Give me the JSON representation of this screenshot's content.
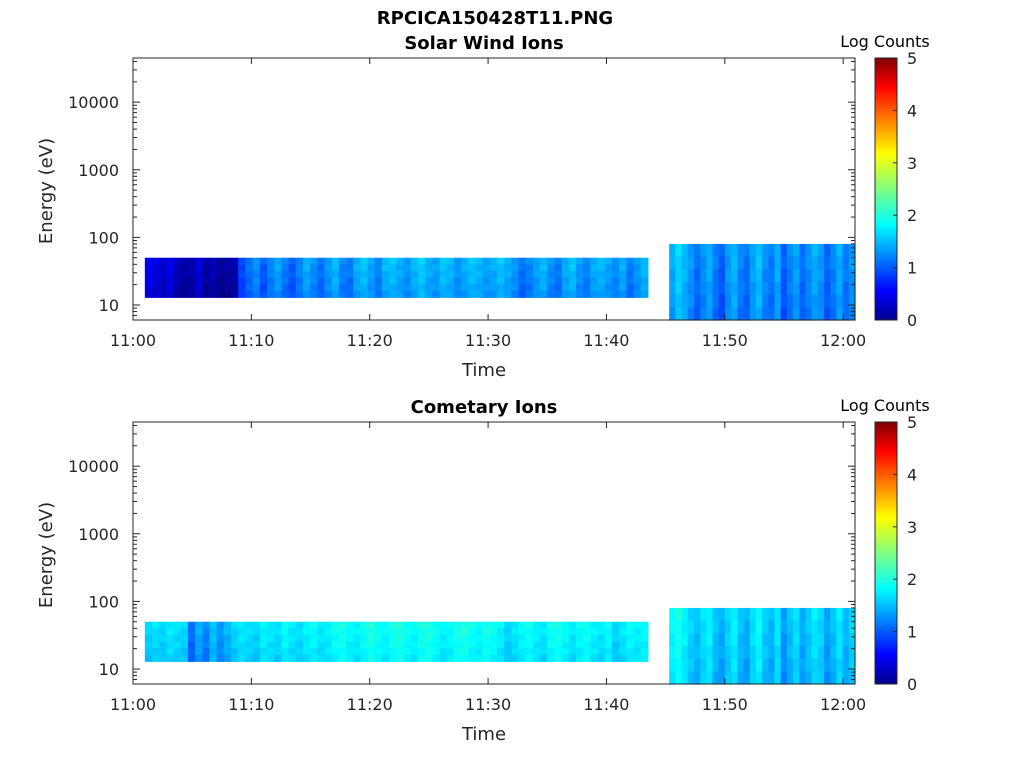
{
  "figure_title": "RPCICA150428T11.PNG",
  "chart_data": [
    {
      "type": "heatmap",
      "title": "Solar Wind Ions",
      "xlabel": "Time",
      "ylabel": "Energy (eV)",
      "yscale": "log",
      "x_ticks": [
        "11:00",
        "11:10",
        "11:20",
        "11:30",
        "11:40",
        "11:50",
        "12:00"
      ],
      "y_ticks": [
        "10",
        "100",
        "1000",
        "10000"
      ],
      "xlim": [
        "11:00",
        "12:01"
      ],
      "ylim": [
        6,
        45000
      ],
      "colorbar": {
        "label": "Log Counts",
        "range": [
          0,
          5
        ],
        "ticks": [
          "0",
          "1",
          "2",
          "3",
          "4",
          "5"
        ],
        "colormap": "jet"
      },
      "segments": [
        {
          "t_start": "11:01",
          "t_end": "11:43.5",
          "energy_range_eV": [
            13,
            50
          ],
          "log_counts": [
            0.6,
            0.5,
            0.4,
            0.55,
            0.3,
            0.2,
            0.25,
            0.5,
            0.2,
            0.3,
            0.15,
            0.2,
            0.25,
            1.0,
            1.2,
            1.35,
            1.1,
            1.3,
            1.45,
            1.25,
            1.1,
            1.3,
            1.5,
            1.35,
            1.2,
            1.4,
            1.55,
            1.3,
            1.25,
            1.5,
            1.6,
            1.45,
            1.3,
            1.55,
            1.6,
            1.5,
            1.4,
            1.55,
            1.65,
            1.5,
            1.45,
            1.6,
            1.55,
            1.4,
            1.5,
            1.6,
            1.55,
            1.45,
            1.5,
            1.6,
            1.5,
            1.4,
            1.2,
            1.3,
            1.45,
            1.55,
            1.35,
            1.25,
            1.5,
            1.6,
            1.4,
            1.3,
            1.5,
            1.55,
            1.45,
            1.35,
            1.5,
            1.25,
            1.4,
            1.55
          ]
        },
        {
          "t_start": "11:45.3",
          "t_end": "12:01",
          "energy_range_eV": [
            6,
            80
          ],
          "log_counts": [
            1.5,
            1.7,
            1.55,
            1.4,
            1.2,
            1.35,
            1.5,
            1.25,
            1.1,
            1.4,
            1.55,
            1.3,
            1.2,
            1.45,
            1.6,
            1.35,
            1.25,
            1.5,
            1.1,
            1.3,
            1.45,
            1.2,
            1.35,
            1.5,
            1.4,
            1.15,
            1.3,
            1.5,
            1.25,
            1.4
          ]
        }
      ]
    },
    {
      "type": "heatmap",
      "title": "Cometary Ions",
      "xlabel": "Time",
      "ylabel": "Energy (eV)",
      "yscale": "log",
      "x_ticks": [
        "11:00",
        "11:10",
        "11:20",
        "11:30",
        "11:40",
        "11:50",
        "12:00"
      ],
      "y_ticks": [
        "10",
        "100",
        "1000",
        "10000"
      ],
      "xlim": [
        "11:00",
        "12:01"
      ],
      "ylim": [
        6,
        45000
      ],
      "colorbar": {
        "label": "Log Counts",
        "range": [
          0,
          5
        ],
        "ticks": [
          "0",
          "1",
          "2",
          "3",
          "4",
          "5"
        ],
        "colormap": "jet"
      },
      "segments": [
        {
          "t_start": "11:01",
          "t_end": "11:43.5",
          "energy_range_eV": [
            13,
            50
          ],
          "log_counts": [
            1.7,
            1.75,
            1.7,
            1.8,
            1.75,
            1.7,
            1.2,
            1.5,
            1.3,
            1.6,
            1.4,
            1.55,
            1.7,
            1.8,
            1.75,
            1.7,
            1.85,
            1.8,
            1.75,
            1.9,
            1.8,
            1.75,
            1.85,
            1.9,
            1.8,
            1.85,
            1.95,
            2.0,
            1.9,
            1.85,
            1.95,
            2.05,
            1.95,
            1.9,
            2.0,
            2.05,
            1.95,
            1.9,
            2.0,
            2.05,
            1.95,
            1.85,
            1.9,
            2.0,
            2.05,
            1.95,
            1.9,
            2.0,
            1.95,
            1.85,
            1.7,
            1.8,
            1.9,
            1.95,
            1.85,
            1.8,
            1.95,
            2.0,
            1.9,
            1.8,
            1.9,
            1.95,
            1.85,
            1.8,
            1.9,
            1.7,
            1.8,
            1.9,
            1.85,
            1.9
          ]
        },
        {
          "t_start": "11:45.3",
          "t_end": "12:01",
          "energy_range_eV": [
            6,
            80
          ],
          "log_counts": [
            1.9,
            2.0,
            1.85,
            1.7,
            1.6,
            1.75,
            1.85,
            1.6,
            1.5,
            1.7,
            1.85,
            1.6,
            1.5,
            1.75,
            1.9,
            1.65,
            1.55,
            1.8,
            1.4,
            1.6,
            1.75,
            1.5,
            1.65,
            1.8,
            1.7,
            1.45,
            1.6,
            1.8,
            1.55,
            1.7
          ]
        }
      ]
    }
  ]
}
